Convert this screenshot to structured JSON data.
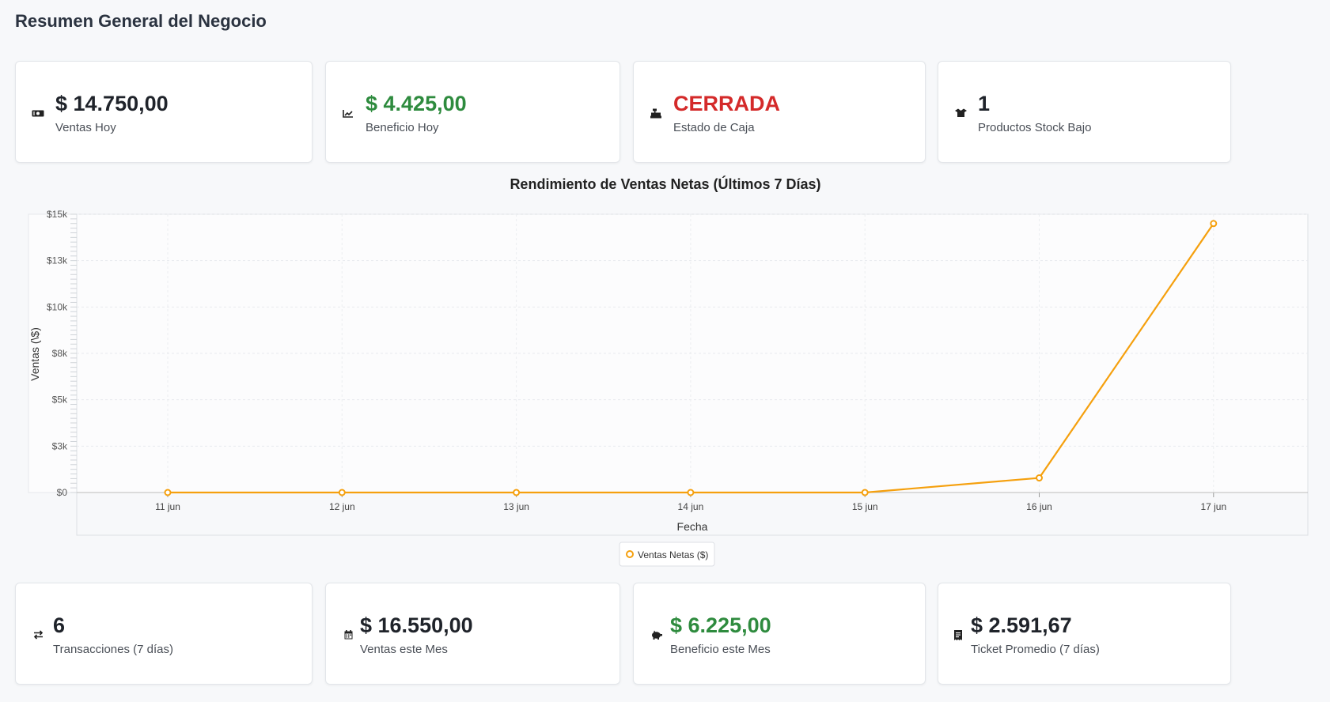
{
  "page": {
    "title": "Resumen General del Negocio"
  },
  "summary_cards": [
    {
      "icon": "money-icon",
      "value": "$ 14.750,00",
      "label": "Ventas Hoy",
      "tone": "normal"
    },
    {
      "icon": "chart-line-icon",
      "value": "$ 4.425,00",
      "label": "Beneficio Hoy",
      "tone": "green"
    },
    {
      "icon": "cash-register-icon",
      "value": "CERRADA",
      "label": "Estado de Caja",
      "tone": "red"
    },
    {
      "icon": "box-icon",
      "value": "1",
      "label": "Productos Stock Bajo",
      "tone": "normal"
    }
  ],
  "stats_cards": [
    {
      "icon": "exchange-icon",
      "value": "6",
      "label": "Transacciones (7 días)",
      "tone": "normal"
    },
    {
      "icon": "calendar-icon",
      "value": "$ 16.550,00",
      "label": "Ventas este Mes",
      "tone": "normal"
    },
    {
      "icon": "piggy-bank-icon",
      "value": "$ 6.225,00",
      "label": "Beneficio este Mes",
      "tone": "green"
    },
    {
      "icon": "receipt-icon",
      "value": "$ 2.591,67",
      "label": "Ticket Promedio (7 días)",
      "tone": "normal"
    }
  ],
  "colors": {
    "line": "#f5a00e",
    "green": "#2e8b3e",
    "red": "#d42a2a"
  },
  "chart_data": {
    "type": "line",
    "title": "Rendimiento de Ventas Netas (Últimos 7 Días)",
    "xlabel": "Fecha",
    "ylabel": "Ventas (\\$)",
    "categories": [
      "11 jun",
      "12 jun",
      "13 jun",
      "14 jun",
      "15 jun",
      "16 jun",
      "17 jun"
    ],
    "series": [
      {
        "name": "Ventas Netas ($)",
        "values": [
          0,
          0,
          0,
          0,
          0,
          800,
          14750
        ]
      }
    ],
    "y_ticks": [
      "$0",
      "$3k",
      "$5k",
      "$8k",
      "$10k",
      "$13k",
      "$15k"
    ],
    "ylim": [
      0,
      15000
    ],
    "grid": true,
    "legend": "bottom-center"
  }
}
